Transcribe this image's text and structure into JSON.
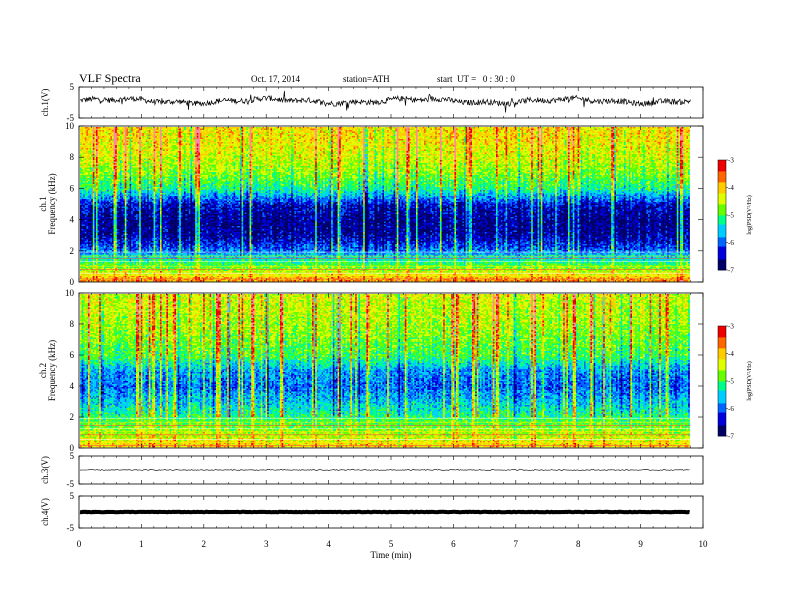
{
  "header": {
    "title": "VLF Spectra",
    "date": "Oct. 17, 2014",
    "station": "station=ATH",
    "start": "start  UT =   0 : 30 : 0"
  },
  "colors": {
    "spectrum": [
      "#000066",
      "#0000dd",
      "#0066ff",
      "#00ccff",
      "#00ff88",
      "#66ff00",
      "#ddff00",
      "#ffcc00",
      "#ff6600",
      "#ee0000",
      "#ff88aa",
      "#ffffff"
    ],
    "trace": "#000000"
  },
  "chart_data": [
    {
      "type": "line",
      "name": "ch1-waveform",
      "ylabel": "ch.1(V)",
      "ylim": [
        -5,
        5
      ],
      "yticks": [
        "5",
        "-5"
      ],
      "xlim": [
        0,
        10
      ],
      "note_level": 0.5
    },
    {
      "type": "heatmap",
      "name": "ch1-spectrogram",
      "ylabel": "ch.1\nFrequency (kHz)",
      "ylim": [
        0,
        10
      ],
      "yticks": [
        "10",
        "8",
        "6",
        "4",
        "2",
        "0"
      ],
      "xlim": [
        0,
        10
      ],
      "data_end_min": 9.8,
      "colorbar_label": "log(PSD(V²/Hz)",
      "colorbar_ticks": [
        "-3",
        "-4",
        "-5",
        "-6",
        "-7"
      ],
      "colorbar_range": [
        -7,
        -3
      ],
      "profile_khz": [
        0,
        1,
        2,
        3,
        4,
        5,
        6,
        7,
        8,
        9,
        10
      ],
      "profile_log_psd": [
        -3.6,
        -4.8,
        -5.9,
        -6.6,
        -6.7,
        -6.4,
        -5.2,
        -4.7,
        -4.4,
        -4.2,
        -4.1
      ]
    },
    {
      "type": "heatmap",
      "name": "ch2-spectrogram",
      "ylabel": "ch.2\nFrequency (kHz)",
      "ylim": [
        0,
        10
      ],
      "yticks": [
        "10",
        "8",
        "6",
        "4",
        "2",
        "0"
      ],
      "xlim": [
        0,
        10
      ],
      "data_end_min": 9.8,
      "colorbar_label": "log(PSD(V²/Hz)",
      "colorbar_ticks": [
        "-3",
        "-4",
        "-5",
        "-6",
        "-7"
      ],
      "colorbar_range": [
        -7,
        -3
      ],
      "profile_khz": [
        0,
        1,
        2,
        3,
        4,
        5,
        6,
        7,
        8,
        9,
        10
      ],
      "profile_log_psd": [
        -4.0,
        -4.6,
        -5.1,
        -5.6,
        -6.0,
        -5.8,
        -5.0,
        -4.8,
        -4.6,
        -4.5,
        -4.4
      ]
    },
    {
      "type": "line",
      "name": "ch3-waveform",
      "ylabel": "ch.3(V)",
      "ylim": [
        -5,
        5
      ],
      "yticks": [
        "5",
        "-5"
      ],
      "xlim": [
        0,
        10
      ],
      "level": 0.0
    },
    {
      "type": "line",
      "name": "ch4-waveform",
      "ylabel": "ch.4(V)",
      "ylim": [
        -5,
        5
      ],
      "yticks": [
        "5",
        "-5"
      ],
      "xlim": [
        0,
        10
      ],
      "level": 0.0
    }
  ],
  "xaxis": {
    "label": "Time (min)",
    "ticks": [
      "0",
      "1",
      "2",
      "3",
      "4",
      "5",
      "6",
      "7",
      "8",
      "9",
      "10"
    ]
  }
}
